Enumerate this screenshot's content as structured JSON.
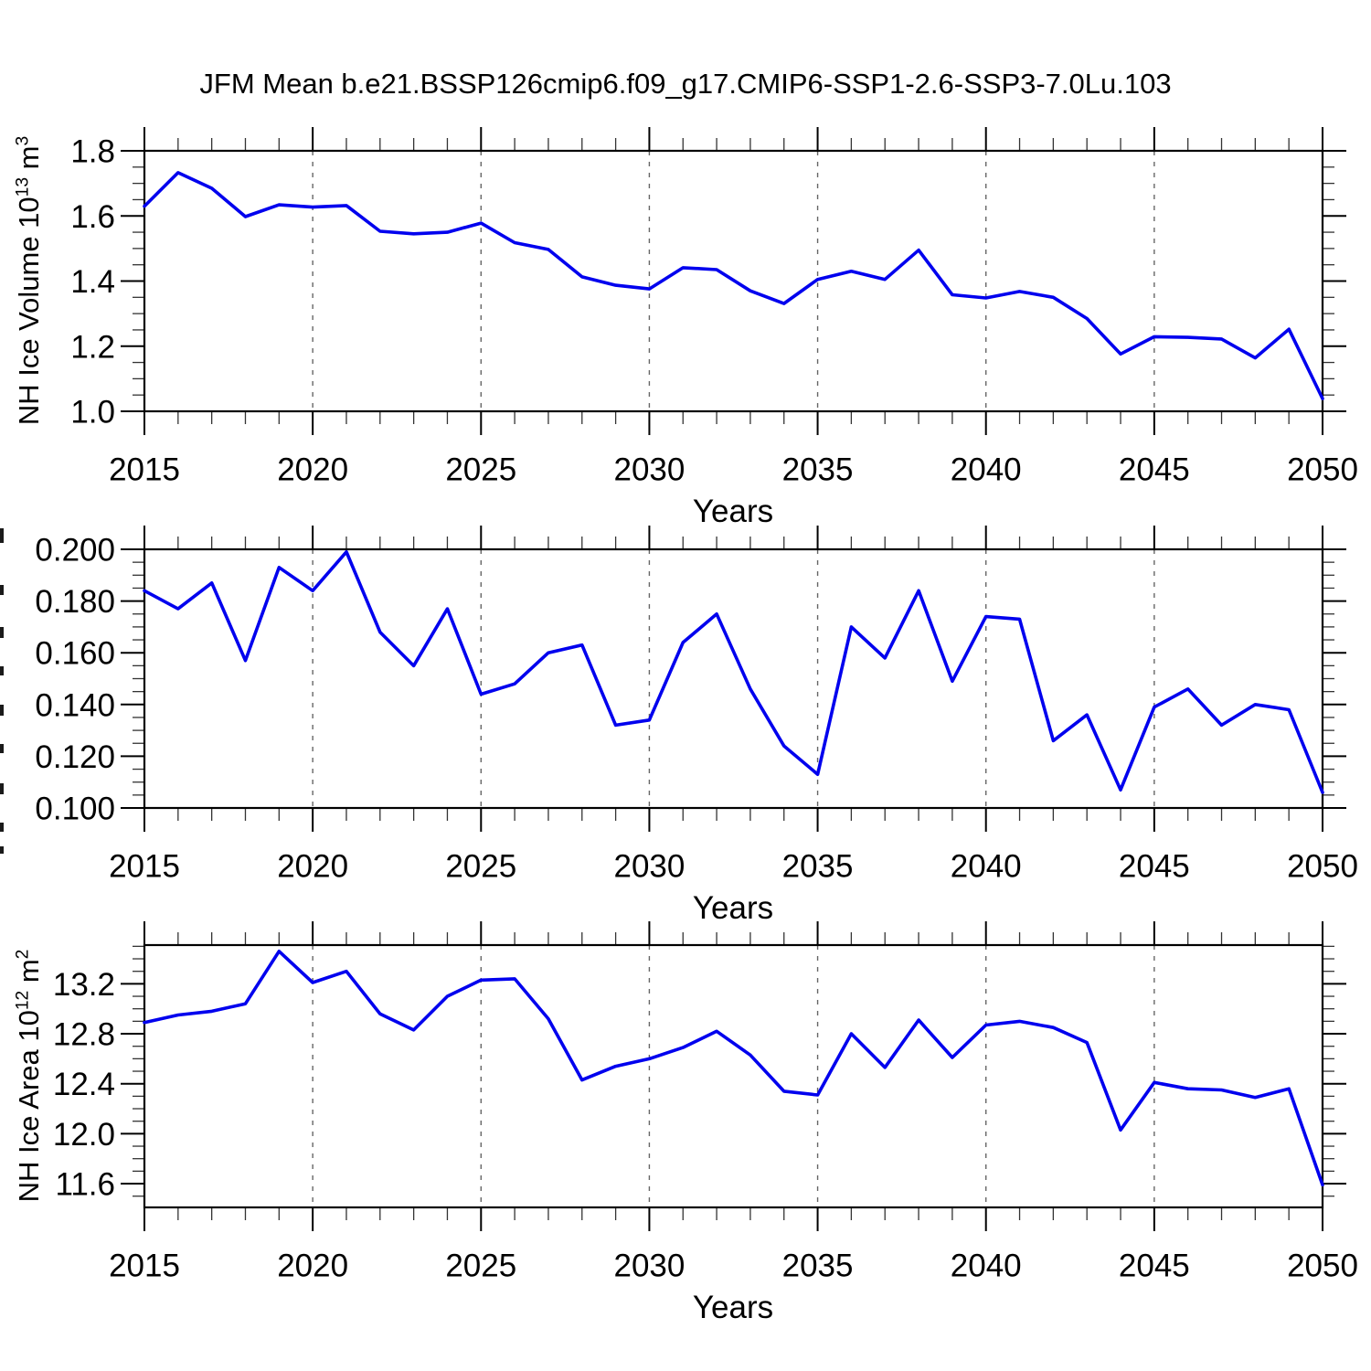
{
  "page": {
    "title": "JFM Mean b.e21.BSSP126cmip6.f09_g17.CMIP6-SSP1-2.6-SSP3-7.0Lu.103"
  },
  "style": {
    "series_color": "#0000EE",
    "axis_color": "#000000",
    "minor_tick_color": "#333333",
    "grid_color": "#666666",
    "text_color": "#000000",
    "background": "#ffffff"
  },
  "years": [
    2015,
    2016,
    2017,
    2018,
    2019,
    2020,
    2021,
    2022,
    2023,
    2024,
    2025,
    2026,
    2027,
    2028,
    2029,
    2030,
    2031,
    2032,
    2033,
    2034,
    2035,
    2036,
    2037,
    2038,
    2039,
    2040,
    2041,
    2042,
    2043,
    2044,
    2045,
    2046,
    2047,
    2048,
    2049,
    2050
  ],
  "chart_data": [
    {
      "type": "line",
      "name": "nh-ice-volume",
      "ylabel_text": "NH Ice Volume 10^13 m^3",
      "ylabel_parts": [
        {
          "t": "NH Ice Volume 10"
        },
        {
          "t": "13",
          "sup": true
        },
        {
          "t": " m"
        },
        {
          "t": "3",
          "sup": true
        }
      ],
      "ylabel_clipped": false,
      "xlabel": "Years",
      "xlim": [
        2015,
        2050
      ],
      "x_major_ticks": [
        2015,
        2020,
        2025,
        2030,
        2035,
        2040,
        2045,
        2050
      ],
      "x_tick_labels": [
        "2015",
        "2020",
        "2025",
        "2030",
        "2035",
        "2040",
        "2045",
        "2050"
      ],
      "x_minor_step": 1,
      "grid_years": [
        2020,
        2025,
        2030,
        2035,
        2040,
        2045
      ],
      "grid_style": "dashed",
      "ylim": [
        1.0,
        1.8
      ],
      "y_major_ticks": [
        1.0,
        1.2,
        1.4,
        1.6,
        1.8
      ],
      "y_tick_labels": [
        "1.0",
        "1.2",
        "1.4",
        "1.6",
        "1.8"
      ],
      "y_minor_step": 0.05,
      "values": [
        1.63,
        1.733,
        1.685,
        1.598,
        1.634,
        1.627,
        1.632,
        1.553,
        1.545,
        1.55,
        1.578,
        1.518,
        1.497,
        1.413,
        1.387,
        1.376,
        1.441,
        1.435,
        1.37,
        1.331,
        1.405,
        1.43,
        1.405,
        1.495,
        1.358,
        1.348,
        1.368,
        1.35,
        1.285,
        1.176,
        1.229,
        1.227,
        1.222,
        1.164,
        1.252,
        1.039
      ]
    },
    {
      "type": "line",
      "name": "middle-series-ylabel-clipped",
      "ylabel_text": "",
      "ylabel_parts": [],
      "ylabel_clipped": true,
      "xlabel": "Years",
      "xlim": [
        2015,
        2050
      ],
      "x_major_ticks": [
        2015,
        2020,
        2025,
        2030,
        2035,
        2040,
        2045,
        2050
      ],
      "x_tick_labels": [
        "2015",
        "2020",
        "2025",
        "2030",
        "2035",
        "2040",
        "2045",
        "2050"
      ],
      "x_minor_step": 1,
      "grid_years": [
        2020,
        2025,
        2030,
        2035,
        2040,
        2045
      ],
      "grid_style": "dashed",
      "ylim": [
        0.1,
        0.2
      ],
      "y_major_ticks": [
        0.1,
        0.12,
        0.14,
        0.16,
        0.18,
        0.2
      ],
      "y_tick_labels": [
        "0.100",
        "0.120",
        "0.140",
        "0.160",
        "0.180",
        "0.200"
      ],
      "y_minor_step": 0.005,
      "values": [
        0.184,
        0.177,
        0.187,
        0.157,
        0.193,
        0.184,
        0.199,
        0.168,
        0.155,
        0.177,
        0.144,
        0.148,
        0.16,
        0.163,
        0.132,
        0.134,
        0.164,
        0.175,
        0.146,
        0.124,
        0.113,
        0.17,
        0.158,
        0.184,
        0.149,
        0.174,
        0.173,
        0.126,
        0.136,
        0.107,
        0.139,
        0.146,
        0.132,
        0.14,
        0.138,
        0.106
      ]
    },
    {
      "type": "line",
      "name": "nh-ice-area",
      "ylabel_text": "NH Ice Area 10^12 m^2",
      "ylabel_parts": [
        {
          "t": "NH Ice Area 10"
        },
        {
          "t": "12",
          "sup": true
        },
        {
          "t": " m"
        },
        {
          "t": "2",
          "sup": true
        }
      ],
      "ylabel_clipped": false,
      "xlabel": "Years",
      "xlim": [
        2015,
        2050
      ],
      "x_major_ticks": [
        2015,
        2020,
        2025,
        2030,
        2035,
        2040,
        2045,
        2050
      ],
      "x_tick_labels": [
        "2015",
        "2020",
        "2025",
        "2030",
        "2035",
        "2040",
        "2045",
        "2050"
      ],
      "x_minor_step": 1,
      "grid_years": [
        2020,
        2025,
        2030,
        2035,
        2040,
        2045
      ],
      "grid_style": "dashed",
      "ylim": [
        11.41,
        13.51
      ],
      "y_major_ticks": [
        11.6,
        12.0,
        12.4,
        12.8,
        13.2
      ],
      "y_tick_labels": [
        "11.6",
        "12.0",
        "12.4",
        "12.8",
        "13.2"
      ],
      "y_minor_step": 0.1,
      "values": [
        12.89,
        12.95,
        12.98,
        13.04,
        13.46,
        13.21,
        13.3,
        12.96,
        12.83,
        13.1,
        13.23,
        13.24,
        12.92,
        12.43,
        12.54,
        12.6,
        12.69,
        12.82,
        12.63,
        12.34,
        12.31,
        12.8,
        12.53,
        12.91,
        12.61,
        12.87,
        12.9,
        12.85,
        12.73,
        12.03,
        12.41,
        12.36,
        12.35,
        12.29,
        12.36,
        11.59
      ]
    }
  ]
}
